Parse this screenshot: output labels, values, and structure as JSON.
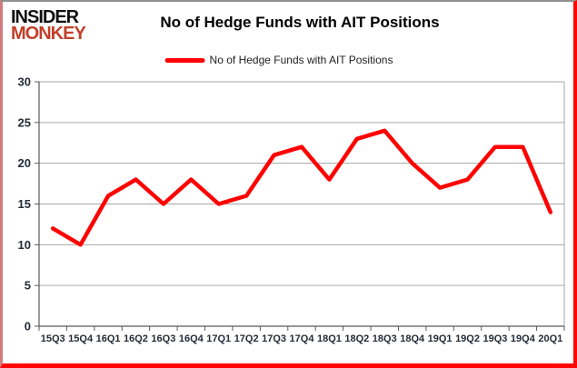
{
  "logo": {
    "line1": "INSIDER",
    "line2": "MONKEY"
  },
  "header": {
    "title": "No of Hedge Funds with AIT Positions"
  },
  "legend": {
    "label": "No of Hedge Funds with AIT Positions",
    "color": "#ff0000"
  },
  "colors": {
    "line": "#ff0000",
    "grid": "#a6a6a6",
    "axis": "#595959",
    "tick_label": "#222c38",
    "frame_red": "#ff0505",
    "logo_red": "#c2402a"
  },
  "chart_data": {
    "type": "line",
    "title": "No of Hedge Funds with AIT Positions",
    "categories": [
      "15Q3",
      "15Q4",
      "16Q1",
      "16Q2",
      "16Q3",
      "16Q4",
      "17Q1",
      "17Q2",
      "17Q3",
      "17Q4",
      "18Q1",
      "18Q2",
      "18Q3",
      "18Q4",
      "19Q1",
      "19Q2",
      "19Q3",
      "19Q4",
      "20Q1"
    ],
    "series": [
      {
        "name": "No of Hedge Funds with AIT Positions",
        "color": "#ff0000",
        "values": [
          12,
          10,
          16,
          18,
          15,
          18,
          15,
          16,
          21,
          22,
          18,
          23,
          24,
          20,
          17,
          18,
          22,
          22,
          14
        ]
      }
    ],
    "xlabel": "",
    "ylabel": "",
    "ylim": [
      0,
      30
    ],
    "yticks": [
      0,
      5,
      10,
      15,
      20,
      25,
      30
    ],
    "grid": "horizontal",
    "legend_position": "top-center"
  }
}
